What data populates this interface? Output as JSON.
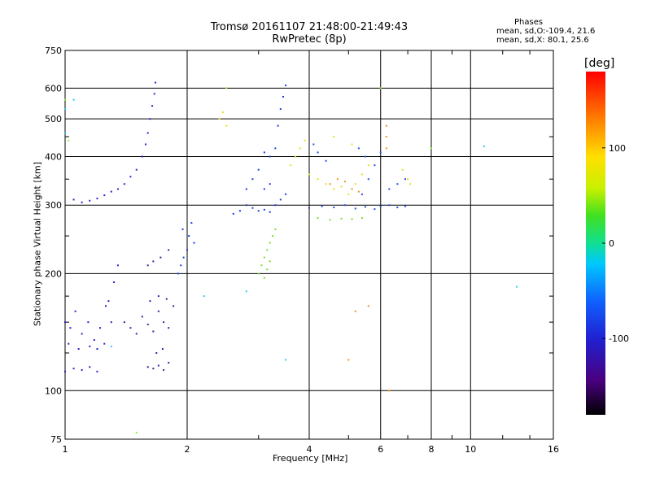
{
  "header": {
    "title_line1": "Tromsø 20161107 21:48:00-21:49:43",
    "title_line2": "RwPretec (8p)",
    "phases_title": "Phases",
    "phases_o": "mean, sd,O:-109.4, 21.6",
    "phases_x": "mean, sd,X:  80.1, 25.6"
  },
  "colorbar": {
    "label": "[deg]",
    "ticks": [
      {
        "value": 100,
        "label": "100"
      },
      {
        "value": 0,
        "label": "0"
      },
      {
        "value": -100,
        "label": "-100"
      }
    ],
    "range": [
      -180,
      180
    ]
  },
  "chart_data": {
    "type": "scatter",
    "title": "Tromsø 20161107 21:48:00-21:49:43",
    "subtitle": "RwPretec (8p)",
    "xlabel": "Frequency [MHz]",
    "ylabel": "Stationary phase Virtual Height [km]",
    "xscale": "log",
    "yscale": "log",
    "xlim": [
      1,
      16
    ],
    "ylim": [
      75,
      750
    ],
    "xticks": [
      1,
      2,
      4,
      6,
      8,
      10,
      16
    ],
    "xtick_labels": [
      "1",
      "2",
      "4",
      "6",
      "8",
      "10",
      "16"
    ],
    "yticks": [
      75,
      100,
      200,
      300,
      400,
      500,
      600,
      750
    ],
    "ytick_labels": [
      "75",
      "100",
      "200",
      "300",
      "400",
      "500",
      "600",
      "750"
    ],
    "grid": true,
    "color_scale": "rainbow phase (deg), -180 black/violet to 180 red",
    "series": [
      {
        "color": "#2a22c8",
        "points": [
          [
            1.0,
            150
          ],
          [
            1.03,
            145
          ],
          [
            1.06,
            160
          ],
          [
            1.1,
            140
          ],
          [
            1.14,
            150
          ],
          [
            1.18,
            135
          ],
          [
            1.22,
            145
          ],
          [
            1.26,
            165
          ],
          [
            1.3,
            150
          ],
          [
            1.02,
            132
          ],
          [
            1.08,
            128
          ],
          [
            1.15,
            130
          ],
          [
            1.2,
            128
          ],
          [
            1.25,
            132
          ],
          [
            1.0,
            112
          ],
          [
            1.05,
            114
          ],
          [
            1.1,
            113
          ],
          [
            1.15,
            115
          ],
          [
            1.2,
            112
          ],
          [
            1.28,
            170
          ],
          [
            1.32,
            190
          ],
          [
            1.35,
            210
          ],
          [
            1.05,
            310
          ],
          [
            1.1,
            305
          ],
          [
            1.15,
            308
          ],
          [
            1.2,
            312
          ],
          [
            1.25,
            318
          ],
          [
            1.3,
            325
          ],
          [
            1.35,
            330
          ],
          [
            1.4,
            340
          ],
          [
            1.45,
            355
          ],
          [
            1.5,
            370
          ],
          [
            1.55,
            400
          ],
          [
            1.58,
            430
          ],
          [
            1.6,
            460
          ],
          [
            1.62,
            500
          ],
          [
            1.64,
            540
          ],
          [
            1.66,
            580
          ],
          [
            1.67,
            620
          ]
        ]
      },
      {
        "color": "#3a1fa8",
        "points": [
          [
            1.4,
            150
          ],
          [
            1.45,
            145
          ],
          [
            1.5,
            140
          ],
          [
            1.55,
            155
          ],
          [
            1.6,
            148
          ],
          [
            1.65,
            142
          ],
          [
            1.7,
            160
          ],
          [
            1.75,
            150
          ],
          [
            1.8,
            145
          ],
          [
            1.6,
            115
          ],
          [
            1.65,
            114
          ],
          [
            1.7,
            116
          ],
          [
            1.75,
            113
          ],
          [
            1.8,
            118
          ],
          [
            1.68,
            125
          ],
          [
            1.74,
            128
          ],
          [
            1.62,
            170
          ],
          [
            1.7,
            175
          ],
          [
            1.78,
            172
          ],
          [
            1.85,
            165
          ],
          [
            1.6,
            210
          ],
          [
            1.65,
            215
          ],
          [
            1.72,
            220
          ],
          [
            1.8,
            230
          ]
        ]
      },
      {
        "color": "#1e3ae0",
        "points": [
          [
            1.9,
            200
          ],
          [
            1.93,
            210
          ],
          [
            1.96,
            220
          ],
          [
            2.0,
            230
          ],
          [
            2.02,
            250
          ],
          [
            2.05,
            270
          ],
          [
            2.08,
            240
          ],
          [
            1.95,
            260
          ],
          [
            2.6,
            285
          ],
          [
            2.7,
            290
          ],
          [
            2.8,
            300
          ],
          [
            2.9,
            295
          ],
          [
            3.0,
            290
          ],
          [
            3.1,
            292
          ],
          [
            3.2,
            288
          ],
          [
            3.3,
            300
          ],
          [
            3.4,
            310
          ],
          [
            3.5,
            320
          ],
          [
            2.8,
            330
          ],
          [
            2.9,
            350
          ],
          [
            3.0,
            370
          ],
          [
            3.1,
            330
          ],
          [
            3.2,
            340
          ],
          [
            3.3,
            420
          ],
          [
            3.35,
            480
          ],
          [
            3.4,
            530
          ],
          [
            3.45,
            570
          ],
          [
            3.5,
            610
          ],
          [
            3.1,
            410
          ],
          [
            3.2,
            400
          ]
        ]
      },
      {
        "color": "#2050f0",
        "points": [
          [
            4.0,
            295
          ],
          [
            4.3,
            298
          ],
          [
            4.6,
            296
          ],
          [
            4.9,
            300
          ],
          [
            5.2,
            294
          ],
          [
            5.5,
            297
          ],
          [
            5.8,
            293
          ],
          [
            6.0,
            298
          ],
          [
            6.3,
            300
          ],
          [
            6.6,
            296
          ],
          [
            6.9,
            298
          ],
          [
            5.4,
            320
          ],
          [
            5.6,
            350
          ],
          [
            5.8,
            380
          ],
          [
            6.0,
            410
          ],
          [
            5.3,
            420
          ],
          [
            5.5,
            400
          ],
          [
            6.3,
            330
          ],
          [
            6.6,
            340
          ],
          [
            6.9,
            350
          ],
          [
            4.2,
            410
          ],
          [
            4.4,
            390
          ],
          [
            4.1,
            430
          ]
        ]
      },
      {
        "color": "#7cdc2c",
        "points": [
          [
            3.0,
            200
          ],
          [
            3.05,
            210
          ],
          [
            3.1,
            220
          ],
          [
            3.15,
            230
          ],
          [
            3.2,
            240
          ],
          [
            3.25,
            250
          ],
          [
            3.3,
            260
          ],
          [
            3.1,
            195
          ],
          [
            3.15,
            205
          ],
          [
            3.2,
            215
          ],
          [
            4.2,
            278
          ],
          [
            4.5,
            275
          ],
          [
            4.8,
            277
          ],
          [
            5.1,
            276
          ],
          [
            5.4,
            278
          ]
        ]
      },
      {
        "color": "#e8e014",
        "points": [
          [
            3.6,
            380
          ],
          [
            3.7,
            400
          ],
          [
            3.8,
            420
          ],
          [
            3.9,
            440
          ],
          [
            4.0,
            360
          ],
          [
            4.2,
            350
          ],
          [
            4.4,
            340
          ],
          [
            4.6,
            330
          ],
          [
            4.8,
            335
          ],
          [
            5.0,
            320
          ],
          [
            5.2,
            340
          ],
          [
            5.4,
            360
          ],
          [
            5.6,
            380
          ],
          [
            4.6,
            450
          ],
          [
            5.1,
            430
          ],
          [
            6.8,
            370
          ],
          [
            7.0,
            350
          ],
          [
            7.1,
            340
          ],
          [
            2.4,
            500
          ],
          [
            2.45,
            520
          ],
          [
            2.5,
            480
          ]
        ]
      },
      {
        "color": "#f09020",
        "points": [
          [
            4.5,
            340
          ],
          [
            4.7,
            350
          ],
          [
            4.9,
            345
          ],
          [
            5.1,
            330
          ],
          [
            5.3,
            325
          ],
          [
            6.2,
            480
          ],
          [
            6.2,
            450
          ],
          [
            6.2,
            420
          ],
          [
            6.3,
            100
          ],
          [
            5.0,
            120
          ],
          [
            5.2,
            160
          ],
          [
            5.6,
            165
          ]
        ]
      },
      {
        "color": "#30c8f0",
        "points": [
          [
            1.0,
            530
          ],
          [
            1.0,
            460
          ],
          [
            1.05,
            560
          ],
          [
            1.3,
            130
          ],
          [
            2.2,
            175
          ],
          [
            2.8,
            180
          ],
          [
            3.5,
            120
          ],
          [
            10.8,
            425
          ],
          [
            13.0,
            185
          ]
        ]
      },
      {
        "color": "#8cf030",
        "points": [
          [
            1.0,
            560
          ],
          [
            1.02,
            440
          ],
          [
            1.5,
            78
          ],
          [
            8.0,
            420
          ],
          [
            2.5,
            600
          ],
          [
            6.0,
            600
          ]
        ]
      }
    ]
  }
}
